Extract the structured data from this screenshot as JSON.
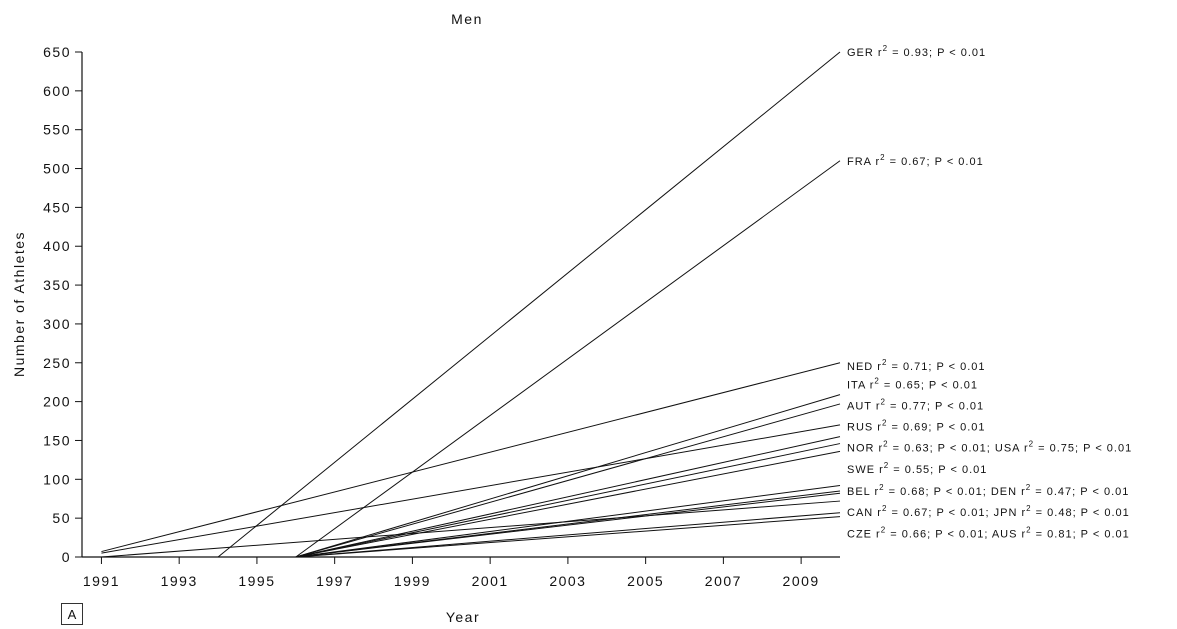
{
  "panel_label": "A",
  "chart_data": {
    "type": "line",
    "title": "Men",
    "xlabel": "Year",
    "ylabel": "Number of Athletes",
    "xlim": [
      1990.5,
      2010
    ],
    "ylim": [
      0,
      650
    ],
    "xticks": [
      "1991",
      "1993",
      "1995",
      "1997",
      "1999",
      "2001",
      "2003",
      "2005",
      "2007",
      "2009"
    ],
    "yticks": [
      "0",
      "50",
      "100",
      "150",
      "200",
      "250",
      "300",
      "350",
      "400",
      "450",
      "500",
      "550",
      "600",
      "650"
    ],
    "grid": false,
    "series": [
      {
        "name": "GER",
        "x": [
          1994,
          2010
        ],
        "y": [
          0,
          650
        ]
      },
      {
        "name": "FRA",
        "x": [
          1996,
          2010
        ],
        "y": [
          0,
          510
        ]
      },
      {
        "name": "NED",
        "x": [
          1991,
          2010
        ],
        "y": [
          7,
          250
        ]
      },
      {
        "name": "ITA",
        "x": [
          1996,
          2010
        ],
        "y": [
          0,
          209
        ]
      },
      {
        "name": "AUT",
        "x": [
          1996,
          2010
        ],
        "y": [
          0,
          197
        ]
      },
      {
        "name": "RUS",
        "x": [
          1991,
          2010
        ],
        "y": [
          5,
          170
        ]
      },
      {
        "name": "NOR",
        "x": [
          1996,
          2010
        ],
        "y": [
          0,
          155
        ]
      },
      {
        "name": "USA",
        "x": [
          1996,
          2010
        ],
        "y": [
          0,
          146
        ]
      },
      {
        "name": "SWE",
        "x": [
          1996,
          2010
        ],
        "y": [
          0,
          136
        ]
      },
      {
        "name": "BEL",
        "x": [
          1996,
          2010
        ],
        "y": [
          0,
          92
        ]
      },
      {
        "name": "DEN",
        "x": [
          1996,
          2010
        ],
        "y": [
          0,
          85
        ]
      },
      {
        "name": "CAN",
        "x": [
          1996,
          2010
        ],
        "y": [
          0,
          82
        ]
      },
      {
        "name": "JPN",
        "x": [
          1991,
          2010
        ],
        "y": [
          0,
          72
        ]
      },
      {
        "name": "CZE",
        "x": [
          1996,
          2010
        ],
        "y": [
          0,
          57
        ]
      },
      {
        "name": "AUS",
        "x": [
          1996,
          2010
        ],
        "y": [
          0,
          52
        ]
      }
    ],
    "annotations": [
      {
        "parts": [
          "GER r",
          "2",
          " = 0.93; P < 0.01"
        ],
        "anchor_y": 650
      },
      {
        "parts": [
          "FRA r",
          "2",
          " = 0.67; P < 0.01"
        ],
        "anchor_y": 510
      },
      {
        "parts": [
          "NED r",
          "2",
          " = 0.71; P < 0.01"
        ],
        "anchor_y": 246
      },
      {
        "parts": [
          "ITA r",
          "2",
          " = 0.65; P < 0.01"
        ],
        "anchor_y": 222
      },
      {
        "parts": [
          "AUT r",
          "2",
          " = 0.77; P < 0.01"
        ],
        "anchor_y": 195
      },
      {
        "parts": [
          "RUS r",
          "2",
          " = 0.69; P < 0.01"
        ],
        "anchor_y": 168
      },
      {
        "parts": [
          "NOR r",
          "2",
          " = 0.63; P < 0.01; USA r",
          "2",
          " = 0.75; P < 0.01"
        ],
        "anchor_y": 141
      },
      {
        "parts": [
          "SWE r",
          "2",
          " = 0.55; P < 0.01"
        ],
        "anchor_y": 113
      },
      {
        "parts": [
          "BEL r",
          "2",
          " = 0.68; P < 0.01; DEN r",
          "2",
          " = 0.47; P < 0.01"
        ],
        "anchor_y": 85
      },
      {
        "parts": [
          "CAN r",
          "2",
          " = 0.67; P < 0.01; JPN r",
          "2",
          " = 0.48; P < 0.01"
        ],
        "anchor_y": 58
      },
      {
        "parts": [
          "CZE r",
          "2",
          " = 0.66; P < 0.01; AUS r",
          "2",
          " = 0.81; P < 0.01"
        ],
        "anchor_y": 30
      }
    ]
  }
}
